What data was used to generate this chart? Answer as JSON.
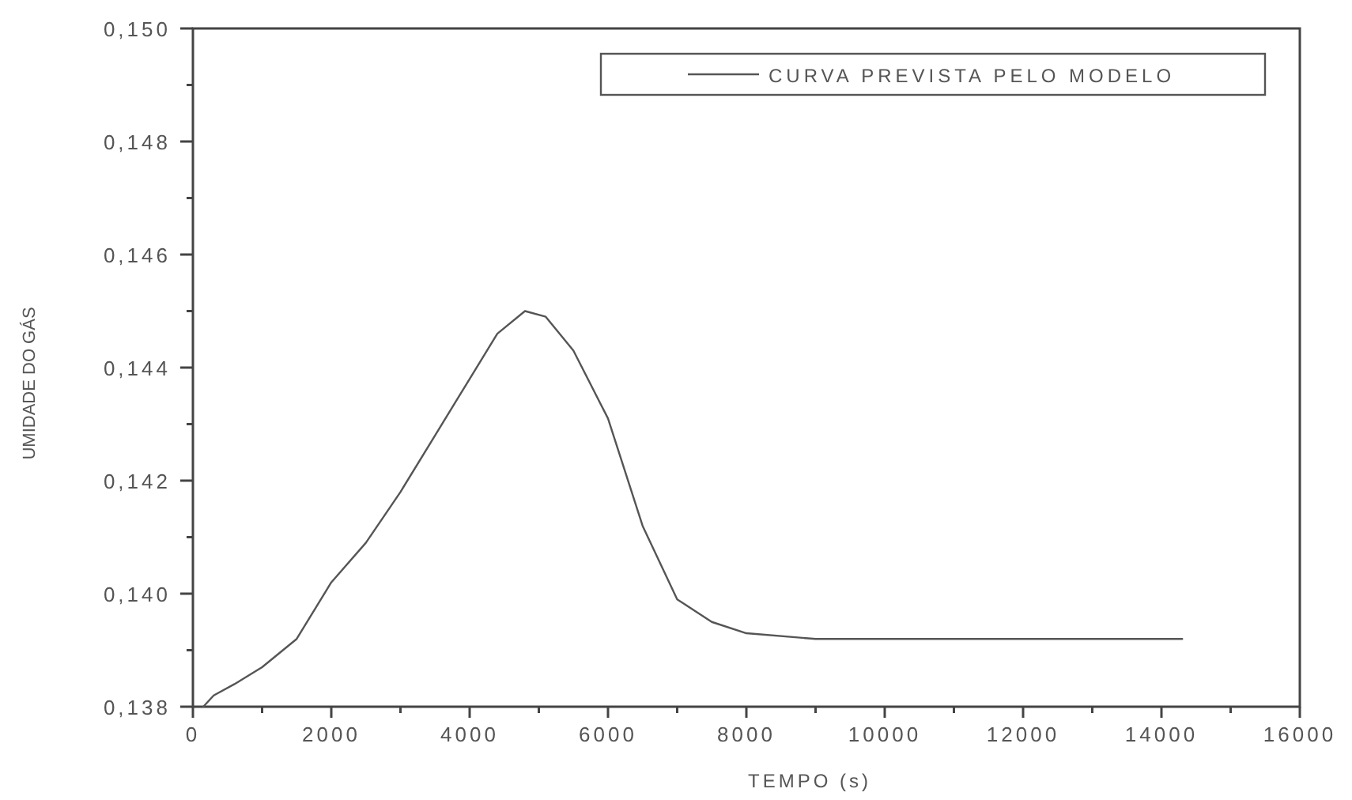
{
  "chart_data": {
    "type": "line",
    "xlabel": "TEMPO (s)",
    "ylabel": "UMIDADE DO GÁS",
    "xlim": [
      0,
      16000
    ],
    "ylim": [
      0.138,
      0.15
    ],
    "xticks": [
      0,
      {
        "value": 1000,
        "label": null
      },
      2000,
      {
        "value": 3000,
        "label": null
      },
      4000,
      {
        "value": 5000,
        "label": null
      },
      6000,
      {
        "value": 7000,
        "label": null
      },
      8000,
      {
        "value": 9000,
        "label": null
      },
      10000,
      {
        "value": 11000,
        "label": null
      },
      12000,
      {
        "value": 13000,
        "label": null
      },
      14000,
      {
        "value": 15000,
        "label": null
      },
      16000
    ],
    "yticks": [
      {
        "value": 0.138,
        "label": "0,138"
      },
      {
        "value": 0.139,
        "label": null
      },
      {
        "value": 0.14,
        "label": "0,140"
      },
      {
        "value": 0.141,
        "label": null
      },
      {
        "value": 0.142,
        "label": "0,142"
      },
      {
        "value": 0.143,
        "label": null
      },
      {
        "value": 0.144,
        "label": "0,144"
      },
      {
        "value": 0.145,
        "label": null
      },
      {
        "value": 0.146,
        "label": "0,146"
      },
      {
        "value": 0.147,
        "label": null
      },
      {
        "value": 0.148,
        "label": "0,148"
      },
      {
        "value": 0.149,
        "label": null
      },
      {
        "value": 0.15,
        "label": "0,150"
      }
    ],
    "grid": false,
    "legend": "top right",
    "line_style": "solid",
    "series": [
      {
        "name": "CURVA PREVISTA PELO MODELO",
        "color": "#555555",
        "x": [
          150,
          300,
          600,
          1000,
          1500,
          2000,
          2500,
          3000,
          3500,
          4000,
          4400,
          4800,
          5100,
          5500,
          6000,
          6500,
          7000,
          7500,
          8000,
          9000,
          10000,
          14300
        ],
        "values": [
          0.138,
          0.1382,
          0.1384,
          0.1387,
          0.1392,
          0.1402,
          0.1409,
          0.1418,
          0.1428,
          0.1438,
          0.1446,
          0.145,
          0.1449,
          0.1443,
          0.1431,
          0.1412,
          0.1399,
          0.1395,
          0.1393,
          0.1392,
          0.1392,
          0.1392
        ]
      }
    ]
  }
}
